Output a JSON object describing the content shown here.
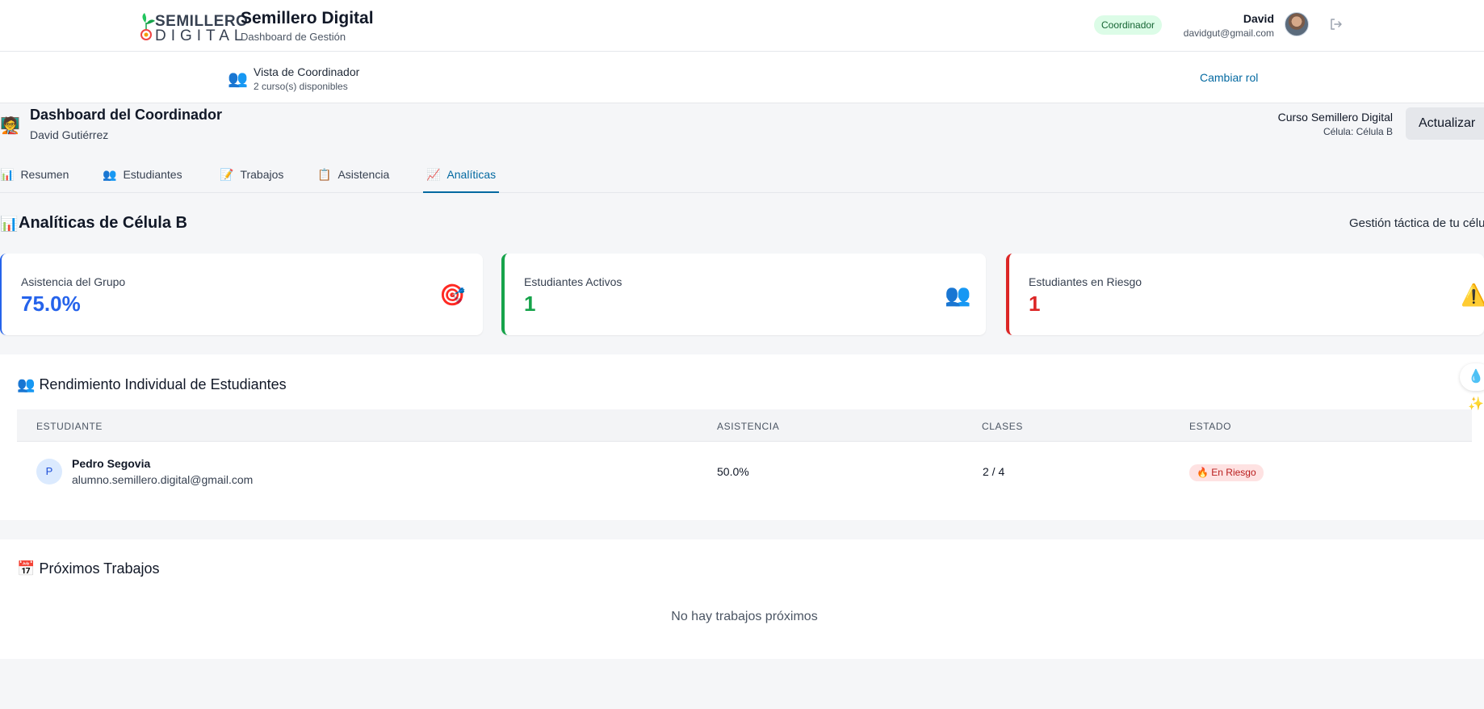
{
  "header": {
    "logo_top": "SEMILLERO",
    "logo_bottom": "DIGITAL",
    "title": "Semillero Digital",
    "subtitle": "Dashboard de Gestión",
    "role_badge": "Coordinador",
    "user_name": "David",
    "user_email": "davidgut@gmail.com"
  },
  "role_bar": {
    "icon": "👥",
    "title": "Vista de Coordinador",
    "subtitle": "2 curso(s) disponibles",
    "change_role": "Cambiar rol"
  },
  "dashboard": {
    "icon": "🧑‍🏫",
    "title": "Dashboard del Coordinador",
    "subtitle": "David Gutiérrez",
    "course_name": "Curso Semillero Digital",
    "course_cell": "Célula: Célula B",
    "refresh_label": "Actualizar"
  },
  "tabs": [
    {
      "icon": "📊",
      "label": "Resumen"
    },
    {
      "icon": "👥",
      "label": "Estudiantes"
    },
    {
      "icon": "📝",
      "label": "Trabajos"
    },
    {
      "icon": "📋",
      "label": "Asistencia"
    },
    {
      "icon": "📈",
      "label": "Analíticas"
    }
  ],
  "analytics": {
    "icon": "📊",
    "title": "Analíticas de Célula B",
    "right_text": "Gestión táctica de tu célula"
  },
  "cards": [
    {
      "label": "Asistencia del Grupo",
      "value": "75.0%",
      "icon": "🎯",
      "color": "#2563eb"
    },
    {
      "label": "Estudiantes Activos",
      "value": "1",
      "icon": "👥",
      "color": "#16a34a"
    },
    {
      "label": "Estudiantes en Riesgo",
      "value": "1",
      "icon": "⚠️",
      "color": "#dc2626"
    }
  ],
  "performance": {
    "icon": "👥",
    "title": "Rendimiento Individual de Estudiantes",
    "columns": [
      "ESTUDIANTE",
      "ASISTENCIA",
      "CLASES",
      "ESTADO"
    ],
    "rows": [
      {
        "initial": "P",
        "name": "Pedro Segovia",
        "email": "alumno.semillero.digital@gmail.com",
        "attendance": "50.0%",
        "classes": "2 / 4",
        "status": "🔥 En Riesgo"
      }
    ]
  },
  "upcoming": {
    "icon": "📅",
    "title": "Próximos Trabajos",
    "empty": "No hay trabajos próximos"
  },
  "floating_button_icon": "💧✨"
}
